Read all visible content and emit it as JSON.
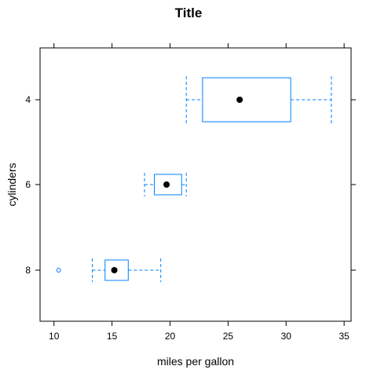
{
  "chart_data": {
    "type": "box",
    "title": "Title",
    "xlabel": "miles per gallon",
    "ylabel": "cylinders",
    "xlim": [
      8.8,
      35.6
    ],
    "x_ticks": [
      10,
      15,
      20,
      25,
      30,
      35
    ],
    "grid": false,
    "categories": [
      "4",
      "6",
      "8"
    ],
    "boxes": [
      {
        "category": "4",
        "whisker_low": 21.4,
        "q1": 22.8,
        "median": 26.0,
        "q3": 30.4,
        "whisker_high": 33.9,
        "outliers": []
      },
      {
        "category": "6",
        "whisker_low": 17.8,
        "q1": 18.65,
        "median": 19.7,
        "q3": 21.0,
        "whisker_high": 21.4,
        "outliers": []
      },
      {
        "category": "8",
        "whisker_low": 13.3,
        "q1": 14.4,
        "median": 15.2,
        "q3": 16.4,
        "whisker_high": 19.2,
        "outliers": [
          10.4
        ]
      }
    ],
    "colors": {
      "box": "#0080ff",
      "median_dot": "#000000",
      "axis": "#000000"
    }
  }
}
